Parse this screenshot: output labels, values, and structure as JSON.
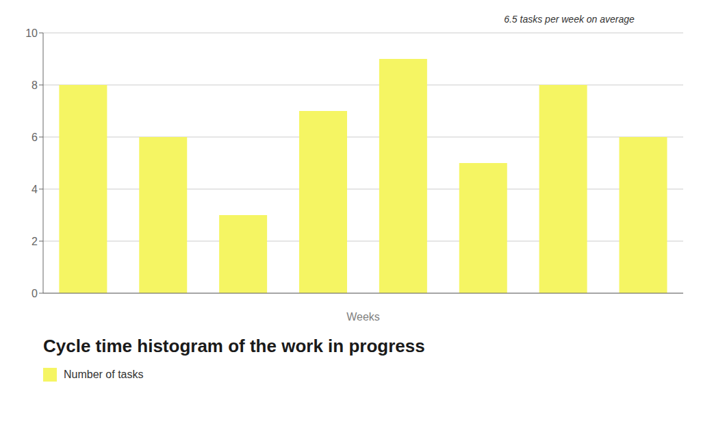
{
  "chart_data": {
    "type": "bar",
    "title": "Cycle time histogram of the work in progress",
    "xlabel": "Weeks",
    "annotation": "6.5 tasks per week on average",
    "categories": [
      null,
      null,
      null,
      null,
      null,
      null,
      null,
      null
    ],
    "series": [
      {
        "name": "Number of tasks",
        "color": "#F5F563",
        "values": [
          8,
          6,
          3,
          7,
          9,
          5,
          8,
          6
        ]
      }
    ],
    "ylim": [
      0,
      10
    ],
    "yticks": [
      0,
      2,
      4,
      6,
      8,
      10
    ],
    "grid": true,
    "legend": "bottom",
    "tick_labels": "y"
  }
}
